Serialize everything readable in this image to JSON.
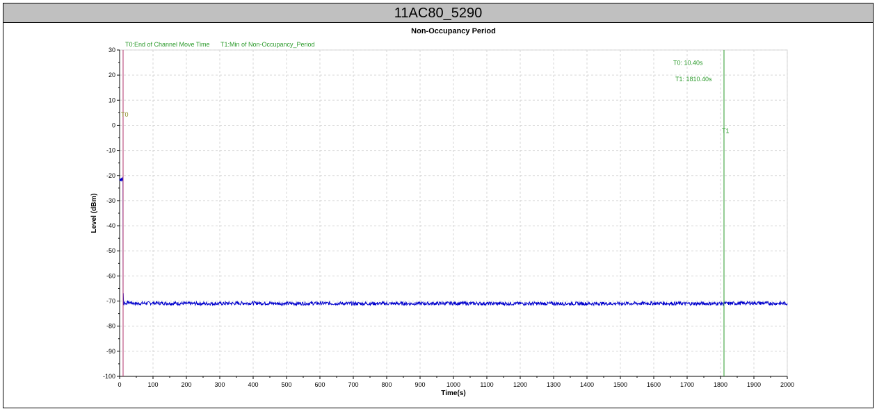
{
  "header": {
    "title": "11AC80_5290"
  },
  "chart_data": {
    "type": "line",
    "title": "Non-Occupancy Period",
    "xlabel": "Time(s)",
    "ylabel": "Level (dBm)",
    "xlim": [
      0,
      2000
    ],
    "ylim": [
      -100,
      30
    ],
    "x_ticks": [
      0,
      100,
      200,
      300,
      400,
      500,
      600,
      700,
      800,
      900,
      1000,
      1100,
      1200,
      1300,
      1400,
      1500,
      1600,
      1700,
      1800,
      1900,
      2000
    ],
    "y_ticks": [
      30,
      20,
      10,
      0,
      -10,
      -20,
      -30,
      -40,
      -50,
      -60,
      -70,
      -80,
      -90,
      -100
    ],
    "grid": true,
    "series": [
      {
        "color": "#0000cc",
        "x": [
          0,
          1,
          2,
          3,
          4,
          5,
          6,
          7,
          8,
          9,
          10,
          10.4,
          11,
          12,
          14,
          18,
          25,
          50,
          100,
          200,
          300,
          400,
          500,
          600,
          700,
          800,
          900,
          1000,
          1100,
          1200,
          1300,
          1400,
          1500,
          1600,
          1700,
          1800,
          1900,
          2000
        ],
        "y": [
          -21.5,
          -22,
          -21,
          -22,
          -21.5,
          -21,
          -22,
          -21.5,
          -21,
          -22,
          -21.5,
          -71,
          -67,
          -71,
          -70.5,
          -71,
          -70.5,
          -71,
          -70.8,
          -71,
          -71,
          -70.8,
          -71,
          -70.9,
          -71,
          -71,
          -71,
          -70.9,
          -71,
          -71,
          -71,
          -71,
          -71,
          -70.9,
          -71,
          -71,
          -70.8,
          -71
        ]
      }
    ],
    "markers": [
      {
        "id": "T0",
        "label": "T0",
        "x": 10.4,
        "color": "#b0306a",
        "legend": "T0:End of Channel Move Time",
        "readout": "T0: 10.40s"
      },
      {
        "id": "T1",
        "label": "T1",
        "x": 1810.4,
        "color": "#2a9a2a",
        "legend": "T1:Min of Non-Occupancy_Period",
        "readout": "T1: 1810.40s"
      }
    ],
    "colors": {
      "marker_text": "#2a9a2a",
      "grid": "#d6d6d6",
      "trace": "#0000cc"
    }
  }
}
